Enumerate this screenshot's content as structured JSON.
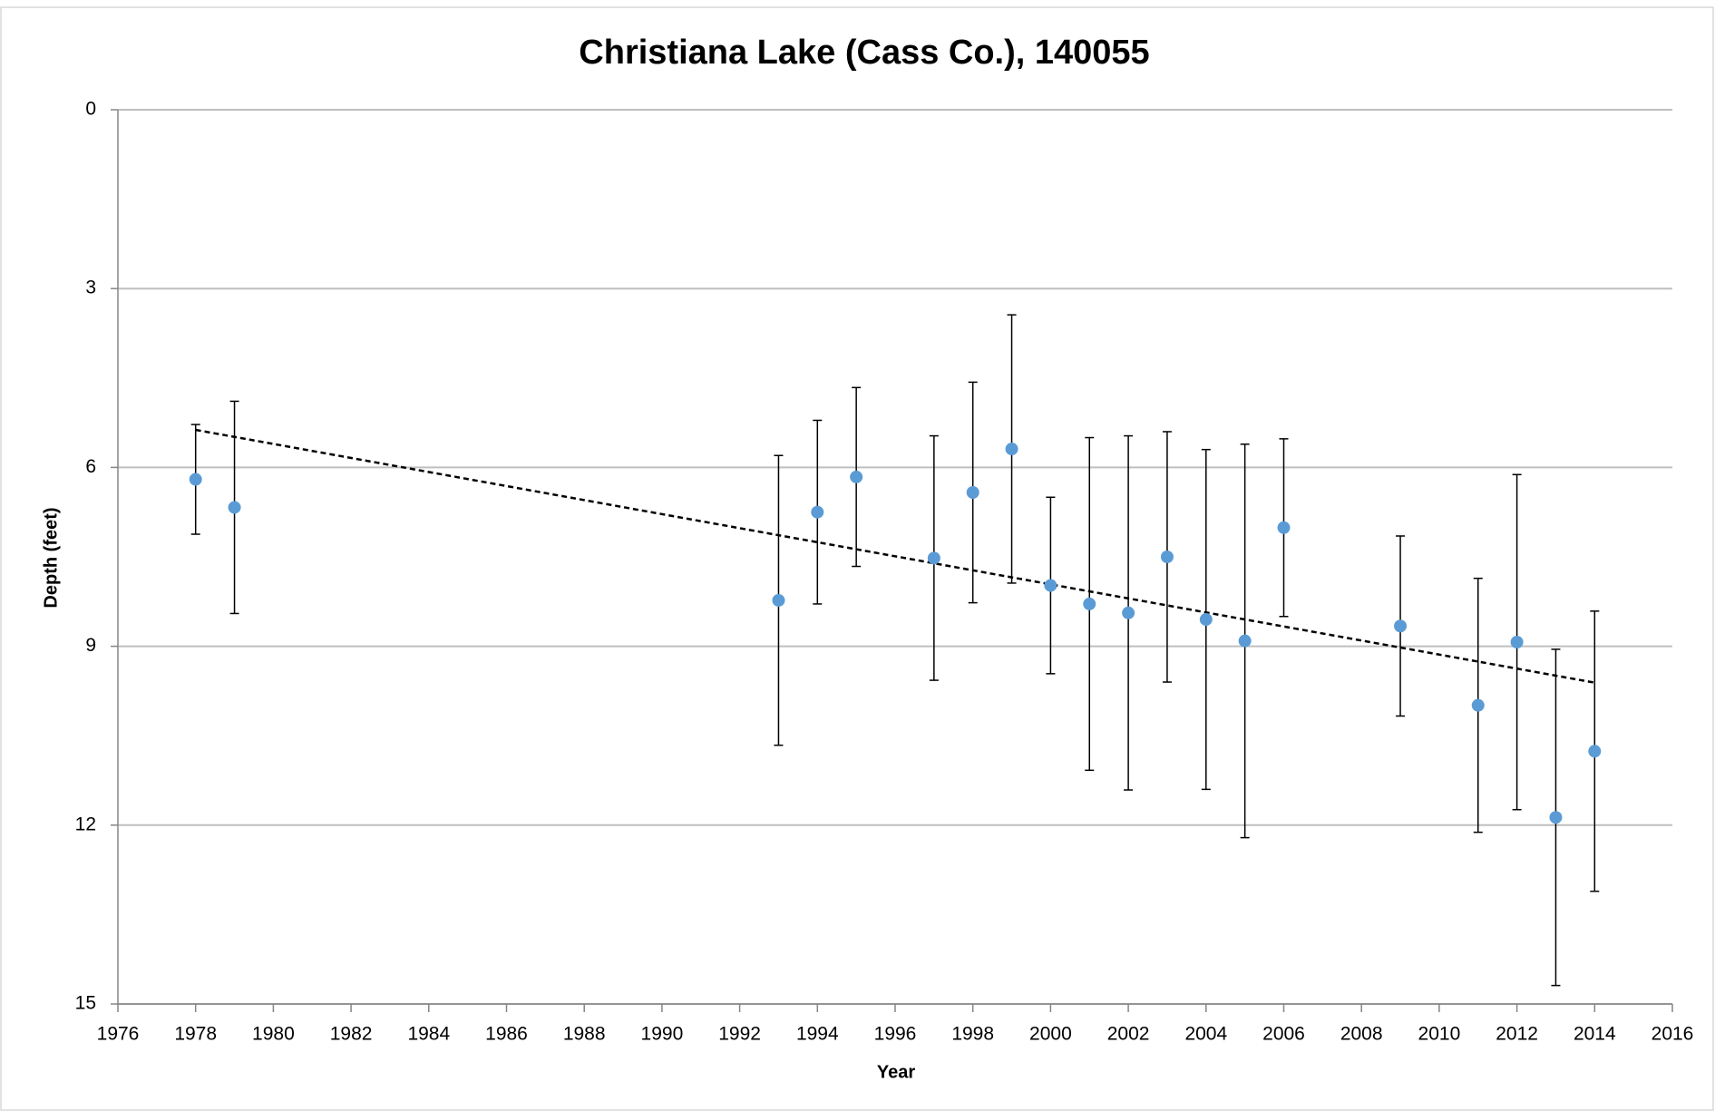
{
  "chart_data": {
    "type": "scatter",
    "title": "Christiana Lake (Cass Co.), 140055",
    "x_label": "Year",
    "y_label": "Depth (feet)",
    "x": [
      1978,
      1979,
      1993,
      1994,
      1995,
      1997,
      1998,
      1999,
      2000,
      2001,
      2002,
      2003,
      2004,
      2005,
      2006,
      2009,
      2011,
      2012,
      2013,
      2014
    ],
    "values": [
      6.2,
      6.67,
      8.23,
      6.75,
      6.16,
      7.52,
      6.42,
      5.69,
      7.98,
      8.29,
      8.44,
      7.5,
      8.55,
      8.91,
      7.01,
      8.66,
      9.99,
      8.93,
      11.87,
      10.76
    ],
    "errors": [
      0.92,
      1.78,
      2.43,
      1.54,
      1.5,
      2.05,
      1.85,
      2.25,
      1.48,
      2.79,
      2.97,
      2.1,
      2.85,
      3.3,
      1.49,
      1.51,
      2.13,
      2.81,
      2.82,
      2.35
    ],
    "color": "#5b9bd5",
    "error_color": "#000000",
    "trendline": {
      "x": [
        1978,
        2014
      ],
      "values": [
        5.37,
        9.61
      ],
      "color": "#000000"
    },
    "xlim": [
      1976,
      2016
    ],
    "xticks": [
      1976,
      1978,
      1980,
      1982,
      1984,
      1986,
      1988,
      1990,
      1992,
      1994,
      1996,
      1998,
      2000,
      2002,
      2004,
      2006,
      2008,
      2010,
      2012,
      2014,
      2016
    ],
    "ylim": [
      0,
      15
    ],
    "yticks": [
      0,
      3,
      6,
      9,
      12,
      15
    ],
    "y_inverted": true,
    "grid": true
  }
}
